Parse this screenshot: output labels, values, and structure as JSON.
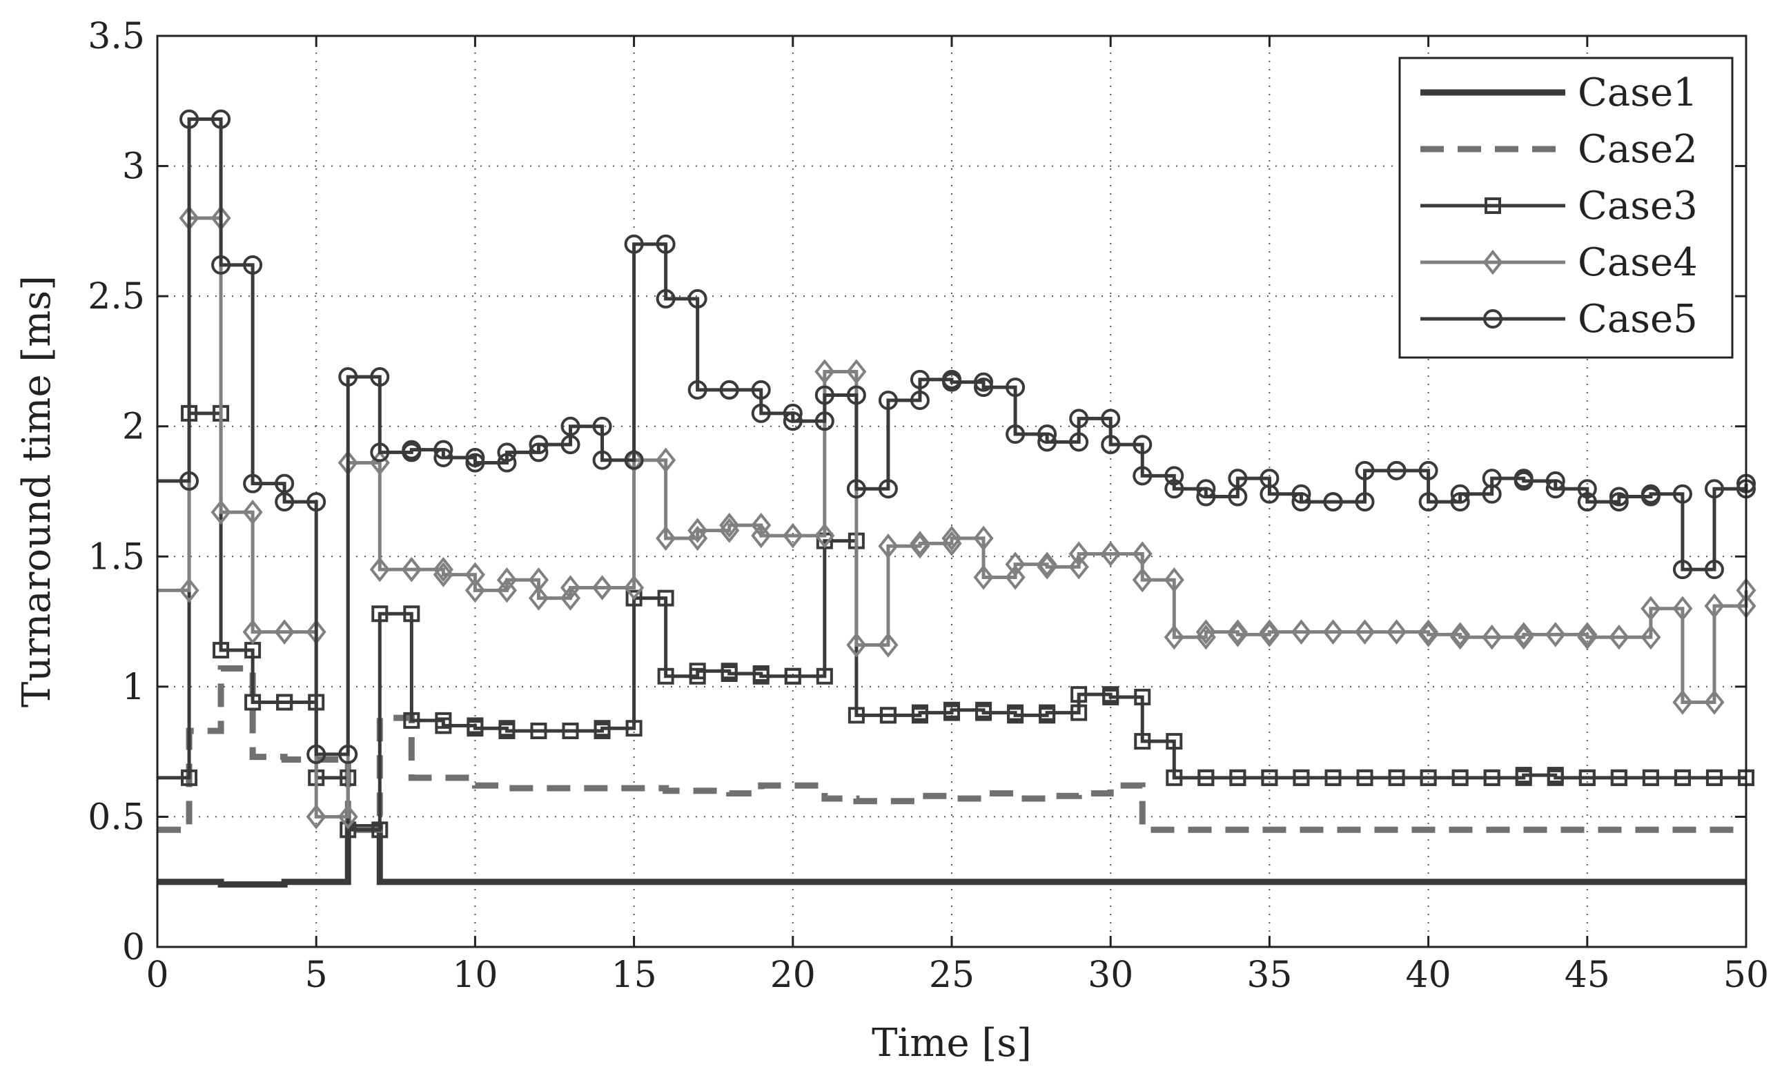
{
  "chart_data": {
    "type": "line",
    "title": "",
    "xlabel": "Time [s]",
    "ylabel": "Turnaround time [ms]",
    "xlim": [
      0,
      50
    ],
    "ylim": [
      0,
      3.5
    ],
    "xticks": [
      0,
      5,
      10,
      15,
      20,
      25,
      30,
      35,
      40,
      45,
      50
    ],
    "yticks": [
      0,
      0.5,
      1,
      1.5,
      2,
      2.5,
      3,
      3.5
    ],
    "xtick_labels": [
      "0",
      "5",
      "10",
      "15",
      "20",
      "25",
      "30",
      "35",
      "40",
      "45",
      "50"
    ],
    "ytick_labels": [
      "0",
      "0.5",
      "1",
      "1.5",
      "2",
      "2.5",
      "3",
      "3.5"
    ],
    "grid": true,
    "legend_position": "top-right",
    "step": true,
    "x": [
      0,
      1,
      2,
      3,
      4,
      5,
      6,
      7,
      8,
      9,
      10,
      11,
      12,
      13,
      14,
      15,
      16,
      17,
      18,
      19,
      20,
      21,
      22,
      23,
      24,
      25,
      26,
      27,
      28,
      29,
      30,
      31,
      32,
      33,
      34,
      35,
      36,
      37,
      38,
      39,
      40,
      41,
      42,
      43,
      44,
      45,
      46,
      47,
      48,
      49,
      50
    ],
    "series": [
      {
        "name": "Case1",
        "style": "thick-solid",
        "color": "#3a3a3a",
        "values": [
          0.25,
          0.25,
          0.24,
          0.24,
          0.25,
          0.25,
          0.46,
          0.25,
          0.25,
          0.25,
          0.25,
          0.25,
          0.25,
          0.25,
          0.25,
          0.25,
          0.25,
          0.25,
          0.25,
          0.25,
          0.25,
          0.25,
          0.25,
          0.25,
          0.25,
          0.25,
          0.25,
          0.25,
          0.25,
          0.25,
          0.25,
          0.25,
          0.25,
          0.25,
          0.25,
          0.25,
          0.25,
          0.25,
          0.25,
          0.25,
          0.25,
          0.25,
          0.25,
          0.25,
          0.25,
          0.25,
          0.25,
          0.25,
          0.25,
          0.25,
          0.25
        ]
      },
      {
        "name": "Case2",
        "style": "dashed",
        "color": "#707070",
        "values": [
          0.45,
          0.83,
          1.07,
          0.73,
          0.72,
          0.72,
          0.45,
          0.88,
          0.65,
          0.65,
          0.62,
          0.61,
          0.61,
          0.61,
          0.61,
          0.61,
          0.6,
          0.6,
          0.59,
          0.62,
          0.62,
          0.57,
          0.56,
          0.56,
          0.58,
          0.57,
          0.59,
          0.57,
          0.58,
          0.59,
          0.62,
          0.45,
          0.45,
          0.45,
          0.45,
          0.45,
          0.45,
          0.45,
          0.45,
          0.45,
          0.45,
          0.45,
          0.45,
          0.45,
          0.45,
          0.45,
          0.45,
          0.45,
          0.45,
          0.45,
          0.45
        ]
      },
      {
        "name": "Case3",
        "style": "square",
        "color": "#3a3a3a",
        "values": [
          0.65,
          2.05,
          1.14,
          0.94,
          0.94,
          0.65,
          0.45,
          1.28,
          0.87,
          0.85,
          0.84,
          0.83,
          0.83,
          0.83,
          0.84,
          1.34,
          1.04,
          1.06,
          1.05,
          1.04,
          1.04,
          1.56,
          0.89,
          0.89,
          0.9,
          0.91,
          0.9,
          0.89,
          0.9,
          0.97,
          0.96,
          0.79,
          0.65,
          0.65,
          0.65,
          0.65,
          0.65,
          0.65,
          0.65,
          0.65,
          0.65,
          0.65,
          0.65,
          0.66,
          0.65,
          0.65,
          0.65,
          0.65,
          0.65,
          0.65,
          0.65
        ]
      },
      {
        "name": "Case4",
        "style": "diamond",
        "color": "#808080",
        "values": [
          1.37,
          2.8,
          1.67,
          1.21,
          1.21,
          0.5,
          1.86,
          1.45,
          1.45,
          1.43,
          1.37,
          1.41,
          1.34,
          1.38,
          1.38,
          1.87,
          1.57,
          1.6,
          1.62,
          1.58,
          1.58,
          2.21,
          1.16,
          1.54,
          1.55,
          1.57,
          1.42,
          1.47,
          1.46,
          1.51,
          1.51,
          1.41,
          1.19,
          1.21,
          1.2,
          1.21,
          1.21,
          1.21,
          1.21,
          1.21,
          1.2,
          1.19,
          1.19,
          1.2,
          1.2,
          1.19,
          1.19,
          1.3,
          0.94,
          1.31,
          1.37
        ]
      },
      {
        "name": "Case5",
        "style": "circle",
        "color": "#3a3a3a",
        "values": [
          1.79,
          3.18,
          2.62,
          1.78,
          1.71,
          0.74,
          2.19,
          1.9,
          1.91,
          1.88,
          1.86,
          1.9,
          1.93,
          2.0,
          1.87,
          2.7,
          2.49,
          2.14,
          2.14,
          2.05,
          2.02,
          2.12,
          1.76,
          2.1,
          2.18,
          2.17,
          2.15,
          1.97,
          1.94,
          2.03,
          1.93,
          1.81,
          1.76,
          1.73,
          1.8,
          1.74,
          1.71,
          1.71,
          1.83,
          1.83,
          1.71,
          1.74,
          1.8,
          1.79,
          1.76,
          1.71,
          1.73,
          1.74,
          1.45,
          1.76,
          1.78
        ]
      }
    ]
  }
}
